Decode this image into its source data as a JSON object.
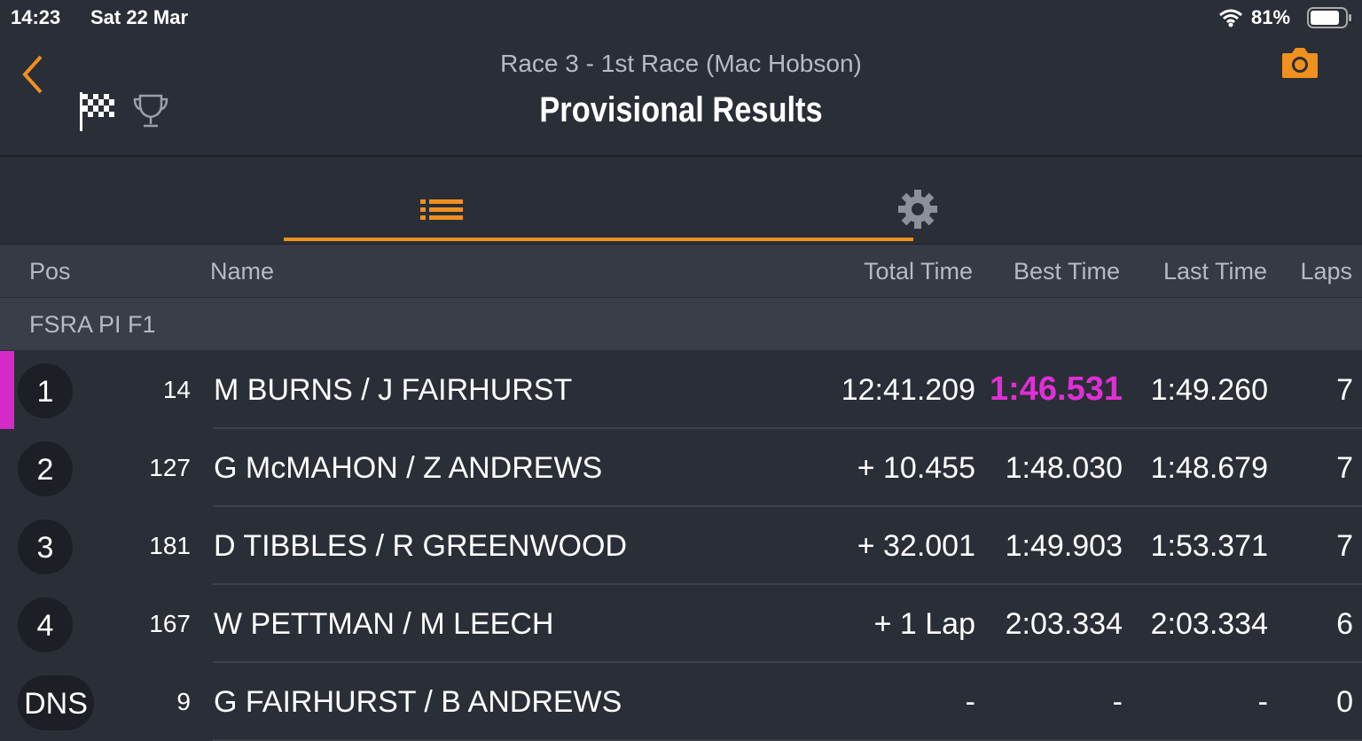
{
  "status": {
    "time": "14:23",
    "date": "Sat 22 Mar",
    "battery": "81%"
  },
  "header": {
    "subtitle": "Race 3 - 1st Race (Mac Hobson)",
    "title": "Provisional Results"
  },
  "table": {
    "columns": [
      "Pos",
      "Name",
      "Total Time",
      "Best Time",
      "Last Time",
      "Laps"
    ],
    "group": "FSRA PI F1",
    "rows": [
      [
        "1",
        "14",
        "M BURNS / J FAIRHURST",
        "12:41.209",
        "1:46.531",
        "1:49.260",
        "7"
      ],
      [
        "2",
        "127",
        "G McMAHON / Z ANDREWS",
        "+ 10.455",
        "1:48.030",
        "1:48.679",
        "7"
      ],
      [
        "3",
        "181",
        "D TIBBLES / R GREENWOOD",
        "+ 32.001",
        "1:49.903",
        "1:53.371",
        "7"
      ],
      [
        "4",
        "167",
        "W PETTMAN / M LEECH",
        "+ 1 Lap",
        "2:03.334",
        "2:03.334",
        "6"
      ],
      [
        "DNS",
        "9",
        "G FAIRHURST / B ANDREWS",
        "-",
        "-",
        "-",
        "0"
      ]
    ]
  }
}
